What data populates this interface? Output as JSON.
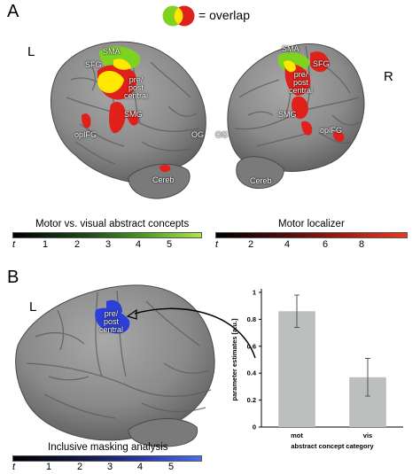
{
  "panels": {
    "a": {
      "letter": "A",
      "legend_text": "= overlap",
      "left_hemisphere": "L",
      "right_hemisphere": "R",
      "left_labels": {
        "sma": "SMA",
        "sfg": "SFG",
        "prepost": "pre/\npost\ncentral",
        "smg": "SMG",
        "opifg": "opIFG",
        "og": "OG",
        "cereb": "Cereb"
      },
      "right_labels": {
        "sma": "SMA",
        "sfg": "SFG",
        "prepost": "pre/\npost\ncentral",
        "smg": "SMG",
        "opifg": "opIFG",
        "og": "OG",
        "cereb": "Cereb"
      },
      "colorbar_left": {
        "title": "Motor vs. visual abstract concepts",
        "t_label": "t",
        "ticks": [
          "1",
          "2",
          "3",
          "4",
          "5"
        ]
      },
      "colorbar_right": {
        "title": "Motor localizer",
        "t_label": "t",
        "ticks": [
          "2",
          "4",
          "6",
          "8"
        ]
      }
    },
    "b": {
      "letter": "B",
      "hemisphere": "L",
      "label_prepost": "pre/\npost\ncentral",
      "colorbar": {
        "title": "Inclusive masking analysis",
        "t_label": "t",
        "ticks": [
          "1",
          "2",
          "3",
          "4",
          "5"
        ]
      }
    }
  },
  "colors": {
    "green": "#7ed321",
    "red": "#e0201a",
    "yellow": "#ffe800",
    "blue": "#2d3fd6",
    "bar_gray": "#bcbfbd",
    "brain_gray": "#8c8c8c"
  },
  "chart_data": {
    "type": "bar",
    "categories": [
      "mot",
      "vis"
    ],
    "values": [
      0.86,
      0.37
    ],
    "errors": [
      0.12,
      0.14
    ],
    "xlabel": "abstract concept category",
    "ylabel": "parameter estimates [a.u.]",
    "ylim": [
      0,
      1
    ],
    "yticks": [
      "0",
      "0.2",
      "0.4",
      "0.6",
      "0.8",
      "1"
    ]
  }
}
